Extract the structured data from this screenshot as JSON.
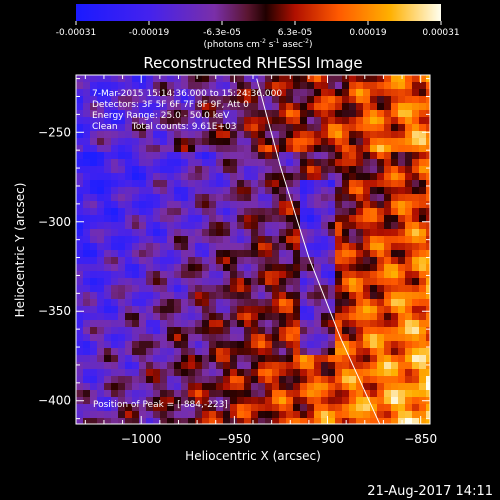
{
  "colorbar": {
    "ticks": [
      "-0.00031",
      "-0.00019",
      "-6.3e-05",
      "6.3e-05",
      "0.00019",
      "0.00031"
    ],
    "units_prefix": "(photons cm",
    "units_sup1": "-2",
    "units_mid1": " s",
    "units_sup2": "-1",
    "units_mid2": " asec",
    "units_sup3": "-2",
    "units_suffix": ")"
  },
  "chart_data": {
    "type": "heatmap",
    "title": "Reconstructed RHESSI Image",
    "xlabel": "Heliocentric X (arcsec)",
    "ylabel": "Heliocentric Y (arcsec)",
    "xlim": [
      -1035,
      -845
    ],
    "ylim": [
      -413,
      -218
    ],
    "xticks": [
      -1000,
      -950,
      -900,
      -850
    ],
    "xtick_labels": [
      "−1000",
      "−950",
      "−900",
      "−850"
    ],
    "yticks": [
      -250,
      -300,
      -350,
      -400
    ],
    "ytick_labels": [
      "−250",
      "−300",
      "−350",
      "−400"
    ],
    "colorscale_range": [
      -0.00031,
      0.00031
    ],
    "limb_curve": [
      [
        -938,
        -220
      ],
      [
        -925,
        -270
      ],
      [
        -910,
        -320
      ],
      [
        -893,
        -365
      ],
      [
        -872,
        -413
      ]
    ],
    "peak": [
      -884,
      -223
    ],
    "annotations": [
      "7-Mar-2015 15:14:36.000 to 15:24:36.000",
      "Detectors: 3F 5F 6F 7F 8F 9F, Att 0",
      "Energy Range: 25.0 - 50.0 keV",
      "Clean     Total counts: 9.61E+03",
      "Position of Peak = [-884,-223]"
    ]
  },
  "timestamp": "21-Aug-2017 14:11"
}
